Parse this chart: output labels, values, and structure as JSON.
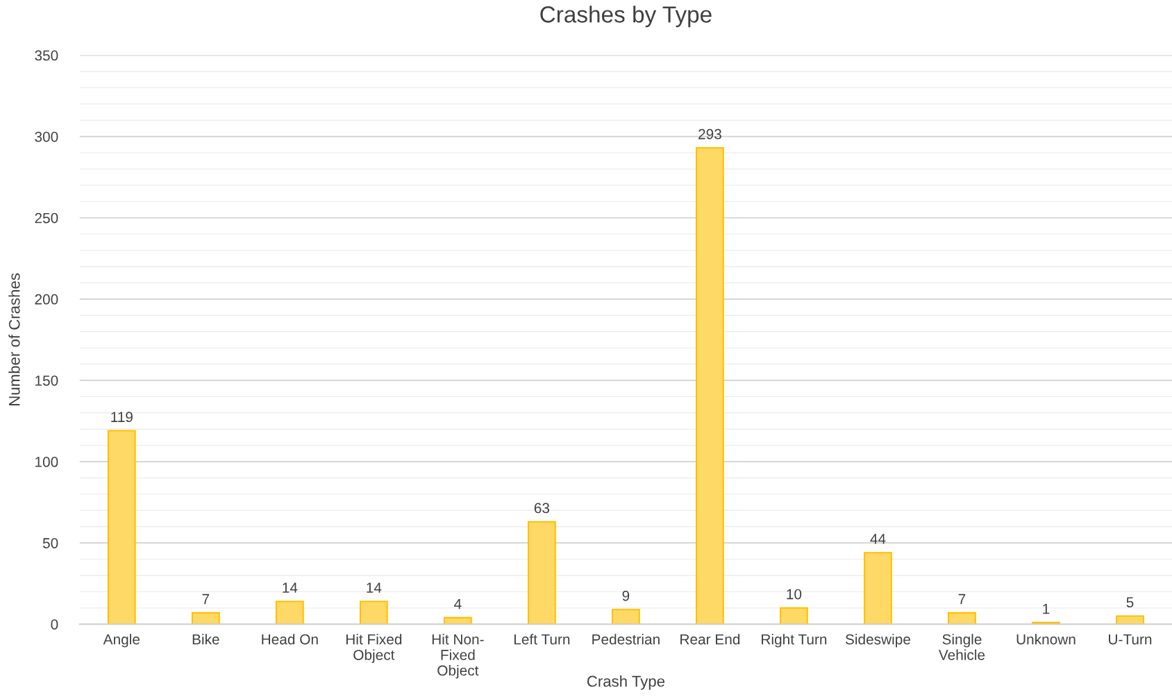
{
  "chart_data": {
    "type": "bar",
    "title": "Crashes by Type",
    "xlabel": "Crash Type",
    "ylabel": "Number of Crashes",
    "categories": [
      "Angle",
      "Bike",
      "Head On",
      "Hit Fixed\nObject",
      "Hit Non-\nFixed\nObject",
      "Left Turn",
      "Pedestrian",
      "Rear End",
      "Right Turn",
      "Sideswipe",
      "Single\nVehicle",
      "Unknown",
      "U-Turn"
    ],
    "values": [
      119,
      7,
      14,
      14,
      4,
      63,
      9,
      293,
      10,
      44,
      7,
      1,
      5
    ],
    "color": "#ffd966",
    "ylim": [
      0,
      350
    ],
    "yticks": [
      0,
      {
        "value": 10,
        "label": null
      },
      {
        "value": 20,
        "label": null
      },
      {
        "value": 30,
        "label": null
      },
      {
        "value": 40,
        "label": null
      },
      50,
      {
        "value": 60,
        "label": null
      },
      {
        "value": 70,
        "label": null
      },
      {
        "value": 80,
        "label": null
      },
      {
        "value": 90,
        "label": null
      },
      100,
      {
        "value": 110,
        "label": null
      },
      {
        "value": 120,
        "label": null
      },
      {
        "value": 130,
        "label": null
      },
      {
        "value": 140,
        "label": null
      },
      150,
      {
        "value": 160,
        "label": null
      },
      {
        "value": 170,
        "label": null
      },
      {
        "value": 180,
        "label": null
      },
      {
        "value": 190,
        "label": null
      },
      200,
      {
        "value": 210,
        "label": null
      },
      {
        "value": 220,
        "label": null
      },
      {
        "value": 230,
        "label": null
      },
      {
        "value": 240,
        "label": null
      },
      250,
      {
        "value": 260,
        "label": null
      },
      {
        "value": 270,
        "label": null
      },
      {
        "value": 280,
        "label": null
      },
      {
        "value": 290,
        "label": null
      },
      300,
      {
        "value": 310,
        "label": null
      },
      {
        "value": 320,
        "label": null
      },
      {
        "value": 330,
        "label": null
      },
      {
        "value": 340,
        "label": null
      },
      350
    ],
    "grid": "y",
    "data_labels": true,
    "legend": false
  }
}
